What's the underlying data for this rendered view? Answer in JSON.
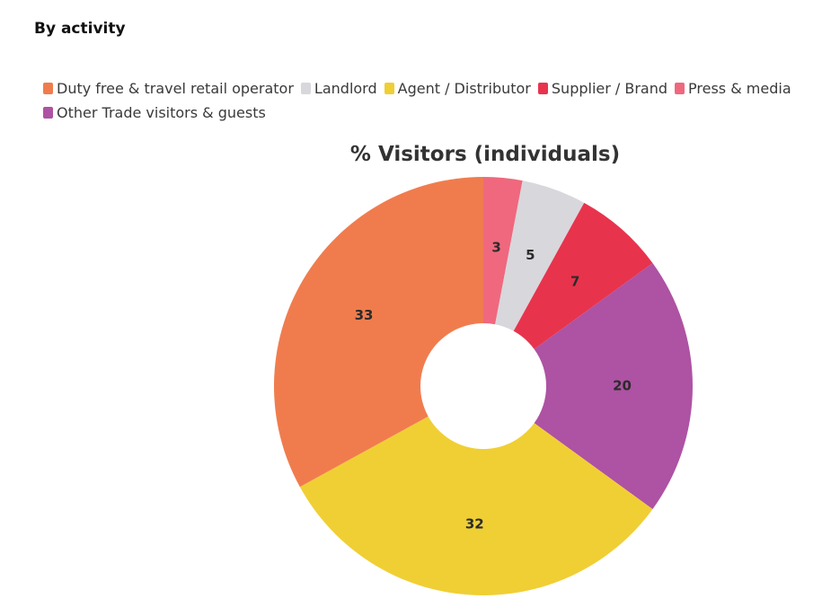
{
  "section_title": "By activity",
  "chart_data": {
    "type": "pie",
    "title": "% Visitors (individuals)",
    "donut": true,
    "legend_position": "top",
    "legend": [
      {
        "label": "Duty free & travel retail operator",
        "color": "#F07C4E"
      },
      {
        "label": "Landlord",
        "color": "#D8D7DC"
      },
      {
        "label": "Agent / Distributor",
        "color": "#F0CF34"
      },
      {
        "label": "Supplier / Brand",
        "color": "#E8334D"
      },
      {
        "label": "Press & media",
        "color": "#EF687E"
      },
      {
        "label": "Other Trade visitors & guests",
        "color": "#AE52A3"
      }
    ],
    "slices": [
      {
        "name": "Press & media",
        "value": 3,
        "label": "3",
        "color": "#EF687E"
      },
      {
        "name": "Landlord",
        "value": 5,
        "label": "5",
        "color": "#D8D7DC"
      },
      {
        "name": "Supplier / Brand",
        "value": 7,
        "label": "7",
        "color": "#E8334D"
      },
      {
        "name": "Other Trade visitors & guests",
        "value": 20,
        "label": "20",
        "color": "#AE52A3"
      },
      {
        "name": "Agent / Distributor",
        "value": 32,
        "label": "32",
        "color": "#F0CF34"
      },
      {
        "name": "Duty free & travel retail operator",
        "value": 33,
        "label": "33",
        "color": "#F07C4E"
      }
    ]
  }
}
